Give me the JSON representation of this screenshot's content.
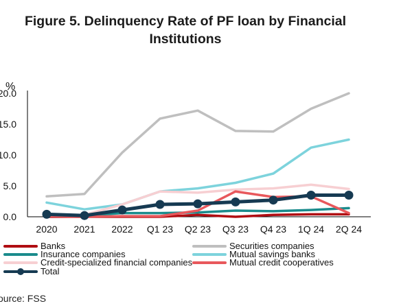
{
  "chart_data": {
    "type": "line",
    "title": "Figure 5. Delinquency Rate of PF loan by Financial Institutions",
    "title_lines": [
      "Figure 5. Delinquency Rate of PF loan by Financial",
      "Institutions"
    ],
    "ylabel": "%",
    "xlabel": "",
    "ylim": [
      0,
      20
    ],
    "yticks": [
      "0.0",
      "5.0",
      "10.0",
      "15.0",
      "20.0"
    ],
    "ytick_values": [
      0,
      5,
      10,
      15,
      20
    ],
    "grid": false,
    "legend_position": "bottom",
    "categories": [
      "2020",
      "2021",
      "2022",
      "Q1 23",
      "Q2 23",
      "Q3 23",
      "Q4 23",
      "1Q 24",
      "2Q 24"
    ],
    "series": [
      {
        "name": "Banks",
        "color": "#b00d12",
        "values": [
          0.0,
          0.0,
          0.0,
          0.0,
          0.3,
          0.0,
          0.3,
          0.4,
          0.4
        ]
      },
      {
        "name": "Securities companies",
        "color": "#bfbfbf",
        "values": [
          3.3,
          3.7,
          10.4,
          15.9,
          17.2,
          13.9,
          13.8,
          17.5,
          20.0
        ]
      },
      {
        "name": "Insurance companies",
        "color": "#1a8b8c",
        "values": [
          0.2,
          0.2,
          0.6,
          0.6,
          0.7,
          1.0,
          0.9,
          1.1,
          1.4
        ]
      },
      {
        "name": "Mutual savings banks",
        "color": "#7dd3dc",
        "values": [
          2.3,
          1.2,
          2.0,
          4.1,
          4.6,
          5.5,
          7.0,
          11.2,
          12.5
        ]
      },
      {
        "name": "Credit-specialized financial companies",
        "color": "#f7cfd2",
        "values": [
          0.3,
          0.3,
          2.0,
          4.1,
          3.9,
          4.4,
          4.6,
          5.2,
          4.5
        ]
      },
      {
        "name": "Mutual credit cooperatives",
        "color": "#e8585c",
        "values": [
          0.1,
          0.0,
          0.1,
          0.1,
          1.0,
          4.1,
          3.2,
          3.3,
          0.6
        ]
      },
      {
        "name": "Total",
        "color": "#163a52",
        "values": [
          0.4,
          0.2,
          1.1,
          2.0,
          2.1,
          2.4,
          2.7,
          3.5,
          3.5
        ],
        "markers": true
      }
    ]
  },
  "source": "ource: FSS"
}
